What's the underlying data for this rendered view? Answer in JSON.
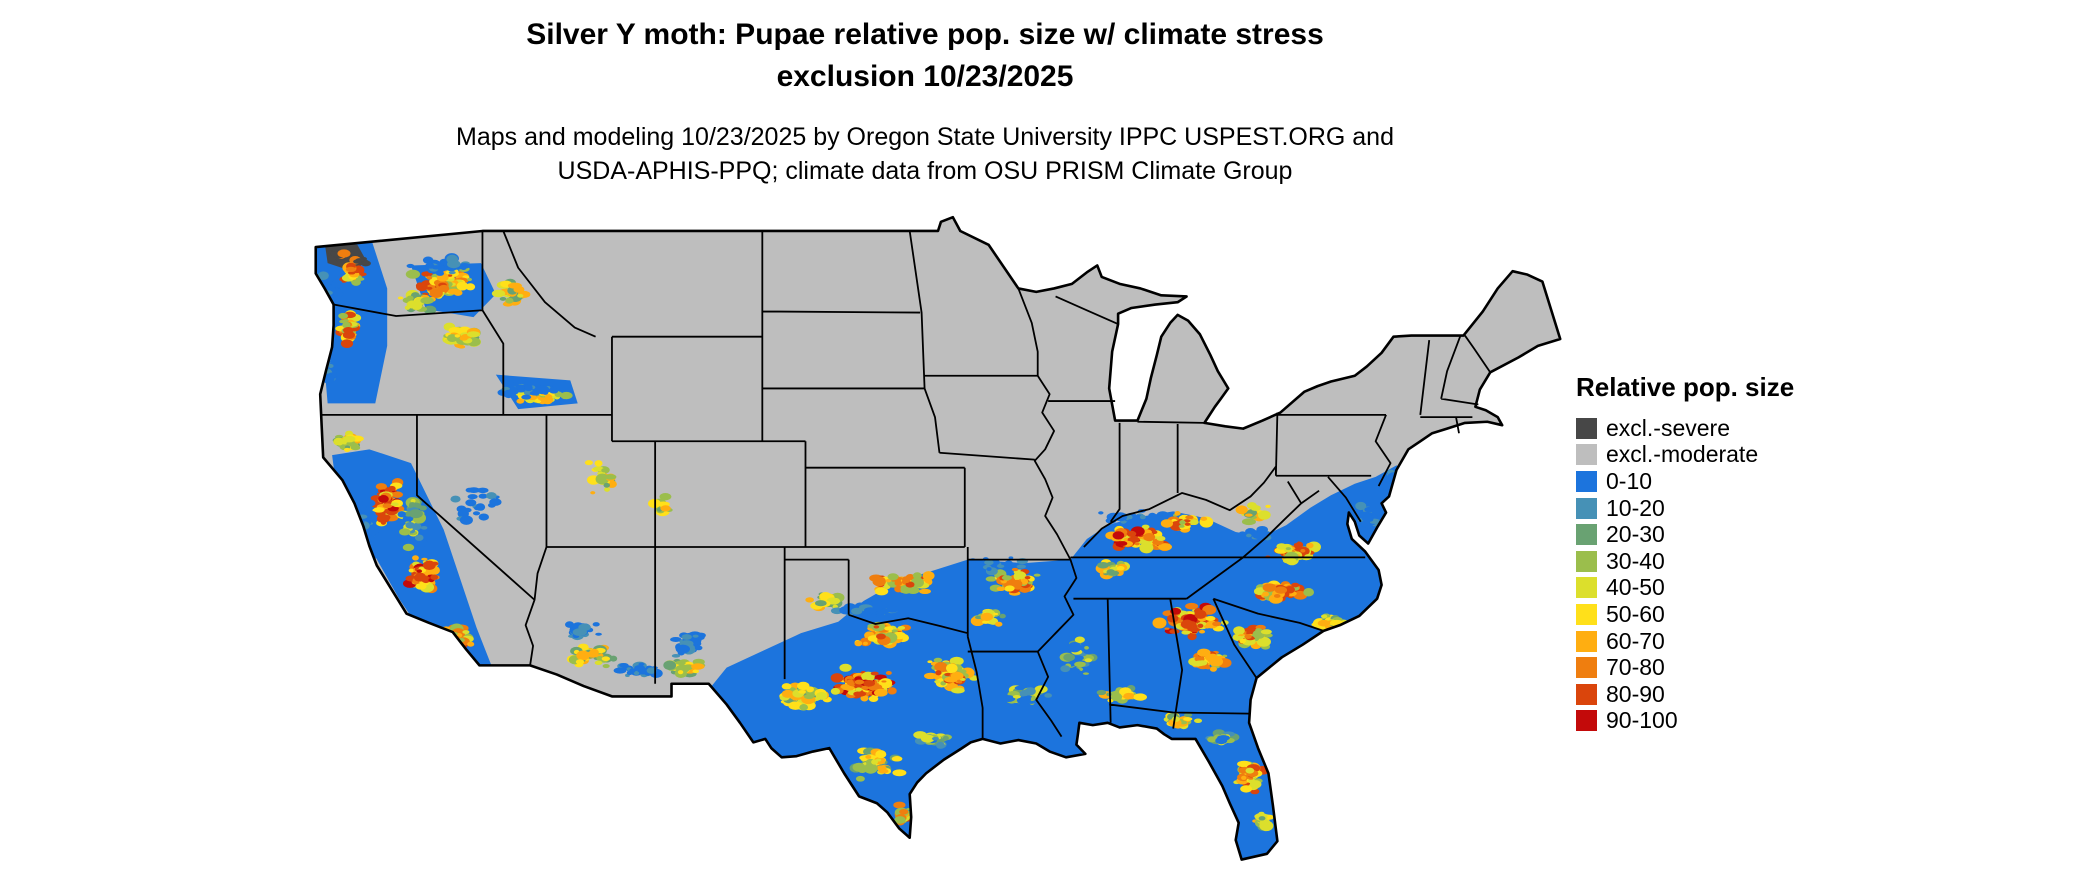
{
  "title": {
    "line1": "Silver Y moth: Pupae relative pop. size w/ climate stress",
    "line2": "exclusion 10/23/2025"
  },
  "subtitle": {
    "line1": "Maps and modeling 10/23/2025 by Oregon State University IPPC USPEST.ORG and",
    "line2": "USDA-APHIS-PPQ; climate data from OSU PRISM Climate Group"
  },
  "legend": {
    "title": "Relative pop. size",
    "items": [
      {
        "label": "excl.-severe",
        "color": "#474747"
      },
      {
        "label": "excl.-moderate",
        "color": "#BEBEBE"
      },
      {
        "label": "0-10",
        "color": "#1C74DD"
      },
      {
        "label": "10-20",
        "color": "#4691B6"
      },
      {
        "label": "20-30",
        "color": "#69A272"
      },
      {
        "label": "30-40",
        "color": "#9BBE4C"
      },
      {
        "label": "40-50",
        "color": "#DCDF2C"
      },
      {
        "label": "50-60",
        "color": "#FFE01A"
      },
      {
        "label": "60-70",
        "color": "#FFAE11"
      },
      {
        "label": "70-80",
        "color": "#EF7E0F"
      },
      {
        "label": "80-90",
        "color": "#DA450C"
      },
      {
        "label": "90-100",
        "color": "#C30A0A"
      }
    ]
  }
}
